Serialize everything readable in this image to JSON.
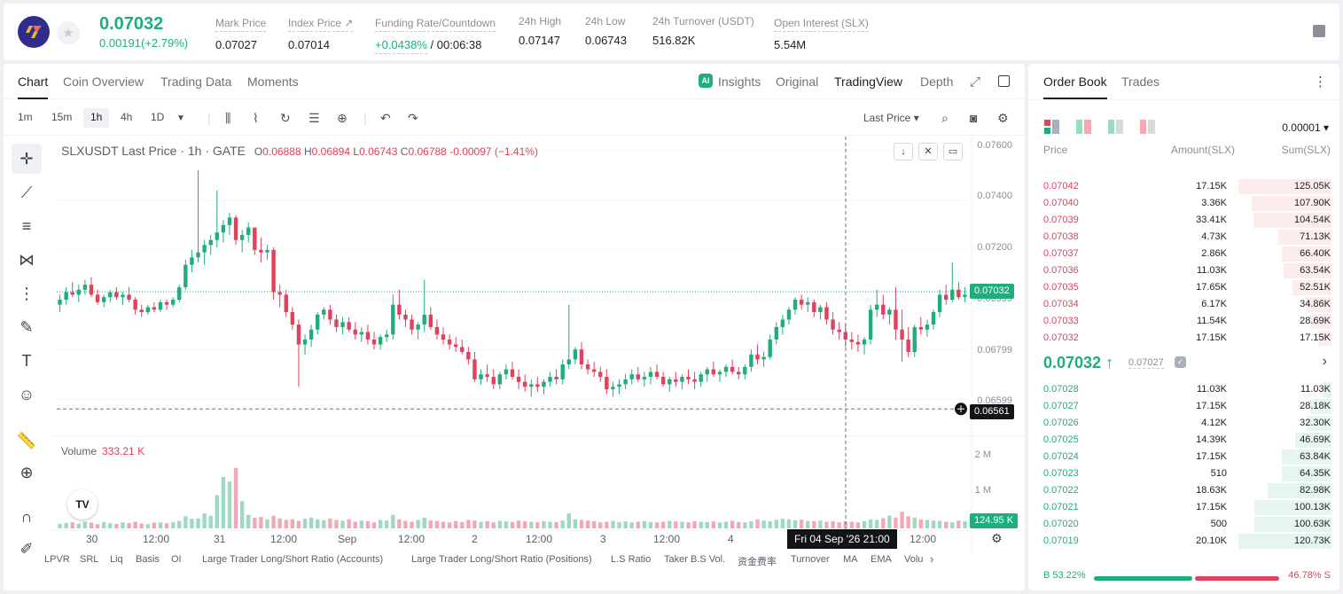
{
  "header": {
    "last_price": "0.07032",
    "change": "0.00191(+2.79%)",
    "stats": [
      {
        "label": "Mark Price",
        "value": "0.07027"
      },
      {
        "label": "Index Price ↗",
        "value": "0.07014"
      },
      {
        "label": "Funding Rate/Countdown",
        "value_green": "+0.0438%",
        "value": "/ 00:06:38"
      },
      {
        "label": "24h High",
        "value": "0.07147"
      },
      {
        "label": "24h Low",
        "value": "0.06743"
      },
      {
        "label": "24h Turnover (USDT)",
        "value": "516.82K"
      },
      {
        "label": "Open Interest (SLX)",
        "value": "5.54M"
      }
    ]
  },
  "chart_tabs": {
    "left": [
      "Chart",
      "Coin Overview",
      "Trading Data",
      "Moments"
    ],
    "right": [
      "Insights",
      "Original",
      "TradingView",
      "Depth"
    ],
    "ai_badge": "AI"
  },
  "toolbar": {
    "timeframes": [
      "1m",
      "15m",
      "1h",
      "4h",
      "1D"
    ],
    "active_timeframe": "1h",
    "price_type": "Last Price ▾"
  },
  "legend": {
    "symbol": "SLXUSDT Last Price · 1h · GATE",
    "o": "0.06888",
    "h": "0.06894",
    "l": "0.06743",
    "c": "0.06788",
    "change": "-0.00097 (−1.41%)"
  },
  "volume_legend": {
    "label": "Volume",
    "value": "333.21 K"
  },
  "price_axis": {
    "ticks": [
      "0.07600",
      "0.07400",
      "0.07200",
      "0.06999",
      "0.06799",
      "0.06599"
    ],
    "tick_values": [
      0.076,
      0.074,
      0.072,
      0.06999,
      0.06799,
      0.06599
    ],
    "current_badge": "0.07032",
    "crosshair_badge": "0.06561",
    "volume_ticks": [
      "2 M",
      "1 M"
    ],
    "volume_badge": "124.95 K"
  },
  "time_axis": {
    "labels": [
      "30",
      "12:00",
      "31",
      "12:00",
      "Sep",
      "12:00",
      "2",
      "12:00",
      "3",
      "12:00",
      "4",
      "12:00"
    ],
    "crosshair_time": "Fri 04 Sep '26   21:00"
  },
  "indicators": [
    "LPVR",
    "SRL",
    "Liq",
    "Basis",
    "OI",
    "Large Trader Long/Short Ratio (Accounts)",
    "Large Trader Long/Short Ratio (Positions)",
    "L.S Ratio",
    "Taker B.S Vol.",
    "资金费率",
    "Turnover",
    "MA",
    "EMA",
    "Volu"
  ],
  "order_book": {
    "tabs": [
      "Order Book",
      "Trades"
    ],
    "precision": "0.00001 ▾",
    "headers": [
      "Price",
      "Amount(SLX)",
      "Sum(SLX)"
    ],
    "asks": [
      {
        "price": "0.07042",
        "amount": "17.15K",
        "sum": "125.05K",
        "depth": 1.0
      },
      {
        "price": "0.07040",
        "amount": "3.36K",
        "sum": "107.90K",
        "depth": 0.86
      },
      {
        "price": "0.07039",
        "amount": "33.41K",
        "sum": "104.54K",
        "depth": 0.84
      },
      {
        "price": "0.07038",
        "amount": "4.73K",
        "sum": "71.13K",
        "depth": 0.57
      },
      {
        "price": "0.07037",
        "amount": "2.86K",
        "sum": "66.40K",
        "depth": 0.53
      },
      {
        "price": "0.07036",
        "amount": "11.03K",
        "sum": "63.54K",
        "depth": 0.51
      },
      {
        "price": "0.07035",
        "amount": "17.65K",
        "sum": "52.51K",
        "depth": 0.42
      },
      {
        "price": "0.07034",
        "amount": "6.17K",
        "sum": "34.86K",
        "depth": 0.28
      },
      {
        "price": "0.07033",
        "amount": "11.54K",
        "sum": "28.69K",
        "depth": 0.23
      },
      {
        "price": "0.07032",
        "amount": "17.15K",
        "sum": "17.15K",
        "depth": 0.14
      }
    ],
    "mid_price": "0.07032 ↑",
    "mark_price": "0.07027",
    "bids": [
      {
        "price": "0.07028",
        "amount": "11.03K",
        "sum": "11.03K",
        "depth": 0.09
      },
      {
        "price": "0.07027",
        "amount": "17.15K",
        "sum": "28.18K",
        "depth": 0.23
      },
      {
        "price": "0.07026",
        "amount": "4.12K",
        "sum": "32.30K",
        "depth": 0.27
      },
      {
        "price": "0.07025",
        "amount": "14.39K",
        "sum": "46.69K",
        "depth": 0.39
      },
      {
        "price": "0.07024",
        "amount": "17.15K",
        "sum": "63.84K",
        "depth": 0.53
      },
      {
        "price": "0.07023",
        "amount": "510",
        "sum": "64.35K",
        "depth": 0.53
      },
      {
        "price": "0.07022",
        "amount": "18.63K",
        "sum": "82.98K",
        "depth": 0.69
      },
      {
        "price": "0.07021",
        "amount": "17.15K",
        "sum": "100.13K",
        "depth": 0.83
      },
      {
        "price": "0.07020",
        "amount": "500",
        "sum": "100.63K",
        "depth": 0.83
      },
      {
        "price": "0.07019",
        "amount": "20.10K",
        "sum": "120.73K",
        "depth": 1.0
      }
    ],
    "buy_ratio": "B 53.22%",
    "sell_ratio": "46.78% S",
    "buy_fraction": 0.5322
  },
  "colors": {
    "up": "#1fad7e",
    "down": "#e0415d",
    "up_vol": "#9ed9c1",
    "down_vol": "#f3a9b5"
  },
  "chart_data": {
    "type": "candlestick",
    "y_range": [
      0.0648,
      0.0762
    ],
    "candles": [
      [
        0.0698,
        0.0702,
        0.0695,
        0.07
      ],
      [
        0.07,
        0.0705,
        0.0698,
        0.0703
      ],
      [
        0.0703,
        0.0707,
        0.0701,
        0.0702
      ],
      [
        0.0702,
        0.0706,
        0.0699,
        0.0704
      ],
      [
        0.0704,
        0.0708,
        0.0702,
        0.0706
      ],
      [
        0.0706,
        0.0709,
        0.0701,
        0.0702
      ],
      [
        0.0702,
        0.0704,
        0.0698,
        0.0699
      ],
      [
        0.0699,
        0.0702,
        0.0697,
        0.0701
      ],
      [
        0.0701,
        0.0704,
        0.0699,
        0.0703
      ],
      [
        0.0703,
        0.0705,
        0.07,
        0.0701
      ],
      [
        0.0701,
        0.0703,
        0.0698,
        0.0702
      ],
      [
        0.0702,
        0.0705,
        0.0699,
        0.07
      ],
      [
        0.07,
        0.0701,
        0.0694,
        0.0696
      ],
      [
        0.0696,
        0.0698,
        0.0693,
        0.0695
      ],
      [
        0.0695,
        0.0698,
        0.0694,
        0.0697
      ],
      [
        0.0697,
        0.0699,
        0.0695,
        0.0696
      ],
      [
        0.0696,
        0.07,
        0.0695,
        0.0699
      ],
      [
        0.0699,
        0.07,
        0.0696,
        0.0698
      ],
      [
        0.0698,
        0.0701,
        0.0697,
        0.07
      ],
      [
        0.07,
        0.0706,
        0.0699,
        0.0705
      ],
      [
        0.0705,
        0.0716,
        0.0704,
        0.0714
      ],
      [
        0.0714,
        0.072,
        0.0711,
        0.0717
      ],
      [
        0.0717,
        0.0752,
        0.0715,
        0.0719
      ],
      [
        0.0719,
        0.0724,
        0.0714,
        0.0722
      ],
      [
        0.0722,
        0.0726,
        0.0718,
        0.0724
      ],
      [
        0.0724,
        0.0744,
        0.0721,
        0.0727
      ],
      [
        0.0727,
        0.0732,
        0.0723,
        0.073
      ],
      [
        0.073,
        0.0735,
        0.0726,
        0.0733
      ],
      [
        0.0733,
        0.0734,
        0.0722,
        0.0724
      ],
      [
        0.0724,
        0.0728,
        0.0719,
        0.0726
      ],
      [
        0.0726,
        0.0731,
        0.0723,
        0.0729
      ],
      [
        0.0729,
        0.0729,
        0.0718,
        0.072
      ],
      [
        0.072,
        0.0725,
        0.0715,
        0.0719
      ],
      [
        0.0719,
        0.0722,
        0.0716,
        0.072
      ],
      [
        0.072,
        0.0721,
        0.07,
        0.0703
      ],
      [
        0.0703,
        0.0706,
        0.0697,
        0.0702
      ],
      [
        0.0702,
        0.0704,
        0.0693,
        0.0695
      ],
      [
        0.0695,
        0.0697,
        0.0688,
        0.069
      ],
      [
        0.069,
        0.0692,
        0.0665,
        0.0682
      ],
      [
        0.0682,
        0.0686,
        0.0678,
        0.0684
      ],
      [
        0.0684,
        0.069,
        0.0681,
        0.0688
      ],
      [
        0.0688,
        0.0695,
        0.0686,
        0.0694
      ],
      [
        0.0694,
        0.0697,
        0.0692,
        0.0696
      ],
      [
        0.0696,
        0.0698,
        0.069,
        0.0692
      ],
      [
        0.0692,
        0.0694,
        0.0687,
        0.0689
      ],
      [
        0.0689,
        0.0693,
        0.0686,
        0.0691
      ],
      [
        0.0691,
        0.0693,
        0.0687,
        0.0688
      ],
      [
        0.0688,
        0.0691,
        0.0684,
        0.0686
      ],
      [
        0.0686,
        0.0689,
        0.0683,
        0.0687
      ],
      [
        0.0687,
        0.069,
        0.0682,
        0.0684
      ],
      [
        0.0684,
        0.0687,
        0.068,
        0.0682
      ],
      [
        0.0682,
        0.0686,
        0.068,
        0.0685
      ],
      [
        0.0685,
        0.0688,
        0.0683,
        0.0686
      ],
      [
        0.0686,
        0.0702,
        0.0684,
        0.0698
      ],
      [
        0.0698,
        0.0704,
        0.0692,
        0.0694
      ],
      [
        0.0694,
        0.0696,
        0.0689,
        0.0692
      ],
      [
        0.0692,
        0.0694,
        0.0686,
        0.0688
      ],
      [
        0.0688,
        0.0691,
        0.0684,
        0.069
      ],
      [
        0.069,
        0.0708,
        0.0687,
        0.0694
      ],
      [
        0.0694,
        0.0697,
        0.0688,
        0.0689
      ],
      [
        0.0689,
        0.0692,
        0.0684,
        0.0686
      ],
      [
        0.0686,
        0.0689,
        0.0682,
        0.0684
      ],
      [
        0.0684,
        0.0686,
        0.068,
        0.0682
      ],
      [
        0.0682,
        0.0685,
        0.0679,
        0.0681
      ],
      [
        0.0681,
        0.0684,
        0.0678,
        0.0679
      ],
      [
        0.0679,
        0.0681,
        0.0674,
        0.0676
      ],
      [
        0.0676,
        0.0679,
        0.0667,
        0.0668
      ],
      [
        0.0668,
        0.0672,
        0.0666,
        0.067
      ],
      [
        0.067,
        0.0674,
        0.0667,
        0.0669
      ],
      [
        0.0669,
        0.0672,
        0.0664,
        0.0666
      ],
      [
        0.0666,
        0.0671,
        0.0664,
        0.067
      ],
      [
        0.067,
        0.0674,
        0.0668,
        0.0672
      ],
      [
        0.0672,
        0.0675,
        0.0668,
        0.0669
      ],
      [
        0.0669,
        0.0672,
        0.0664,
        0.0667
      ],
      [
        0.0667,
        0.067,
        0.0663,
        0.0665
      ],
      [
        0.0665,
        0.0668,
        0.0661,
        0.0666
      ],
      [
        0.0666,
        0.0669,
        0.0663,
        0.0665
      ],
      [
        0.0665,
        0.0668,
        0.0662,
        0.0667
      ],
      [
        0.0667,
        0.0671,
        0.0665,
        0.0669
      ],
      [
        0.0669,
        0.0672,
        0.0666,
        0.0668
      ],
      [
        0.0668,
        0.0676,
        0.0666,
        0.0674
      ],
      [
        0.0674,
        0.0698,
        0.0672,
        0.0676
      ],
      [
        0.0676,
        0.0681,
        0.0674,
        0.068
      ],
      [
        0.068,
        0.0683,
        0.0672,
        0.0674
      ],
      [
        0.0674,
        0.0676,
        0.067,
        0.0672
      ],
      [
        0.0672,
        0.0675,
        0.0669,
        0.0671
      ],
      [
        0.0671,
        0.0673,
        0.0667,
        0.0669
      ],
      [
        0.0669,
        0.0672,
        0.0662,
        0.0664
      ],
      [
        0.0664,
        0.0667,
        0.0661,
        0.0665
      ],
      [
        0.0665,
        0.0668,
        0.0662,
        0.0666
      ],
      [
        0.0666,
        0.067,
        0.0664,
        0.0668
      ],
      [
        0.0668,
        0.0672,
        0.0666,
        0.067
      ],
      [
        0.067,
        0.0673,
        0.0667,
        0.0668
      ],
      [
        0.0668,
        0.0671,
        0.0665,
        0.0669
      ],
      [
        0.0669,
        0.0673,
        0.0666,
        0.0671
      ],
      [
        0.0671,
        0.0674,
        0.0668,
        0.0669
      ],
      [
        0.0669,
        0.0671,
        0.0665,
        0.0666
      ],
      [
        0.0666,
        0.0669,
        0.0663,
        0.0668
      ],
      [
        0.0668,
        0.0671,
        0.0665,
        0.0667
      ],
      [
        0.0667,
        0.067,
        0.0664,
        0.0669
      ],
      [
        0.0669,
        0.0672,
        0.0666,
        0.0668
      ],
      [
        0.0668,
        0.0671,
        0.0664,
        0.0667
      ],
      [
        0.0667,
        0.0671,
        0.0665,
        0.067
      ],
      [
        0.067,
        0.0673,
        0.0667,
        0.0672
      ],
      [
        0.0672,
        0.0675,
        0.0669,
        0.067
      ],
      [
        0.067,
        0.0672,
        0.0667,
        0.0671
      ],
      [
        0.0671,
        0.0674,
        0.0669,
        0.0673
      ],
      [
        0.0673,
        0.0676,
        0.067,
        0.0671
      ],
      [
        0.0671,
        0.0673,
        0.0668,
        0.067
      ],
      [
        0.067,
        0.0674,
        0.0668,
        0.0673
      ],
      [
        0.0673,
        0.068,
        0.0671,
        0.0678
      ],
      [
        0.0678,
        0.0682,
        0.0674,
        0.0676
      ],
      [
        0.0676,
        0.0679,
        0.0673,
        0.0677
      ],
      [
        0.0677,
        0.0686,
        0.0676,
        0.0684
      ],
      [
        0.0684,
        0.0691,
        0.0682,
        0.0689
      ],
      [
        0.0689,
        0.0694,
        0.0686,
        0.0692
      ],
      [
        0.0692,
        0.0697,
        0.069,
        0.0696
      ],
      [
        0.0696,
        0.0701,
        0.0694,
        0.07
      ],
      [
        0.07,
        0.0702,
        0.0696,
        0.0698
      ],
      [
        0.0698,
        0.0701,
        0.0695,
        0.0699
      ],
      [
        0.0699,
        0.07,
        0.0693,
        0.0695
      ],
      [
        0.0695,
        0.0698,
        0.0692,
        0.0697
      ],
      [
        0.0697,
        0.0699,
        0.069,
        0.0692
      ],
      [
        0.0692,
        0.0695,
        0.0686,
        0.0688
      ],
      [
        0.0688,
        0.0691,
        0.0684,
        0.0687
      ],
      [
        0.0687,
        0.069,
        0.0681,
        0.0684
      ],
      [
        0.0684,
        0.0687,
        0.068,
        0.0683
      ],
      [
        0.0683,
        0.0686,
        0.0679,
        0.0682
      ],
      [
        0.0682,
        0.0685,
        0.0678,
        0.0684
      ],
      [
        0.0684,
        0.0698,
        0.0682,
        0.0696
      ],
      [
        0.0696,
        0.0704,
        0.0693,
        0.0698
      ],
      [
        0.0698,
        0.0702,
        0.0692,
        0.0694
      ],
      [
        0.0694,
        0.0697,
        0.069,
        0.0696
      ],
      [
        0.0696,
        0.0705,
        0.0684,
        0.0688
      ],
      [
        0.0688,
        0.0696,
        0.0675,
        0.0684
      ],
      [
        0.0684,
        0.0689,
        0.0677,
        0.0679
      ],
      [
        0.0679,
        0.069,
        0.0677,
        0.0689
      ],
      [
        0.0689,
        0.0693,
        0.0686,
        0.0688
      ],
      [
        0.0688,
        0.0692,
        0.0685,
        0.069
      ],
      [
        0.069,
        0.0696,
        0.0688,
        0.0695
      ],
      [
        0.0695,
        0.0704,
        0.0693,
        0.0702
      ],
      [
        0.0702,
        0.0706,
        0.0698,
        0.07
      ],
      [
        0.07,
        0.0715,
        0.0699,
        0.0704
      ],
      [
        0.0704,
        0.0707,
        0.07,
        0.0701
      ],
      [
        0.0701,
        0.0705,
        0.0699,
        0.0702
      ]
    ],
    "volumes": [
      0.15,
      0.18,
      0.2,
      0.16,
      0.22,
      0.19,
      0.14,
      0.21,
      0.17,
      0.15,
      0.2,
      0.18,
      0.22,
      0.16,
      0.14,
      0.19,
      0.2,
      0.17,
      0.21,
      0.25,
      0.4,
      0.32,
      0.33,
      0.5,
      0.42,
      1.1,
      1.7,
      1.55,
      2.4,
      0.9,
      0.45,
      0.35,
      0.38,
      0.3,
      0.42,
      0.33,
      0.28,
      0.3,
      0.25,
      0.32,
      0.36,
      0.3,
      0.27,
      0.33,
      0.28,
      0.25,
      0.3,
      0.22,
      0.26,
      0.24,
      0.2,
      0.28,
      0.26,
      0.45,
      0.3,
      0.25,
      0.22,
      0.28,
      0.35,
      0.26,
      0.25,
      0.22,
      0.2,
      0.24,
      0.21,
      0.28,
      0.26,
      0.22,
      0.24,
      0.2,
      0.25,
      0.23,
      0.21,
      0.26,
      0.24,
      0.22,
      0.2,
      0.24,
      0.22,
      0.21,
      0.26,
      0.5,
      0.3,
      0.28,
      0.26,
      0.24,
      0.2,
      0.22,
      0.25,
      0.21,
      0.23,
      0.2,
      0.22,
      0.24,
      0.21,
      0.2,
      0.22,
      0.25,
      0.23,
      0.22,
      0.2,
      0.24,
      0.22,
      0.21,
      0.23,
      0.2,
      0.22,
      0.25,
      0.21,
      0.2,
      0.24,
      0.3,
      0.26,
      0.24,
      0.28,
      0.32,
      0.3,
      0.27,
      0.29,
      0.25,
      0.24,
      0.26,
      0.22,
      0.24,
      0.21,
      0.23,
      0.22,
      0.2,
      0.24,
      0.3,
      0.28,
      0.34,
      0.42,
      0.35,
      0.55,
      0.4,
      0.36,
      0.3,
      0.28,
      0.26,
      0.25,
      0.22,
      0.2,
      0.26,
      0.24,
      0.3,
      0.22,
      0.2
    ],
    "volume_max": 2.0
  }
}
